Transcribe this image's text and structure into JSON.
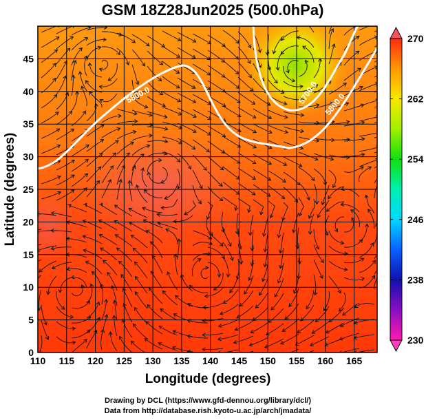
{
  "chart_data": {
    "type": "heatmap",
    "title": "GSM 18Z28Jun2025 (500.0hPa)",
    "xlabel": "Longitude (degrees)",
    "ylabel": "Latitude  (degrees)",
    "xlim": [
      110,
      169
    ],
    "ylim": [
      0,
      50
    ],
    "xticks": [
      "110",
      "115",
      "120",
      "125",
      "130",
      "135",
      "140",
      "145",
      "150",
      "155",
      "160",
      "165"
    ],
    "yticks": [
      "0",
      "5",
      "10",
      "15",
      "20",
      "25",
      "30",
      "35",
      "40",
      "45"
    ],
    "grid": true,
    "shaded_variable": "temperature",
    "colorbar": {
      "range": [
        230,
        270
      ],
      "ticks": [
        "270",
        "262",
        "254",
        "246",
        "238",
        "230"
      ],
      "extend": "both",
      "colors": [
        "#ff1ab0",
        "#8a0fc0",
        "#1010b0",
        "#0a60ff",
        "#00d8ff",
        "#00f0b0",
        "#10e010",
        "#a0f000",
        "#f8e800",
        "#ff9a00",
        "#ff2a10"
      ]
    },
    "contours": [
      {
        "label": "5800.0",
        "color": "#ffffff"
      },
      {
        "label": "5700.0",
        "color": "#ffffff"
      },
      {
        "label": "5800.0",
        "color": "#ffffff"
      }
    ],
    "overlay": "wind streamlines"
  },
  "credits": {
    "line1": "Drawing by DCL (https://www.gfd-dennou.org/library/dcl/)",
    "line2": "Data from http://database.rish.kyoto-u.ac.jp/arch/jmadata/"
  }
}
